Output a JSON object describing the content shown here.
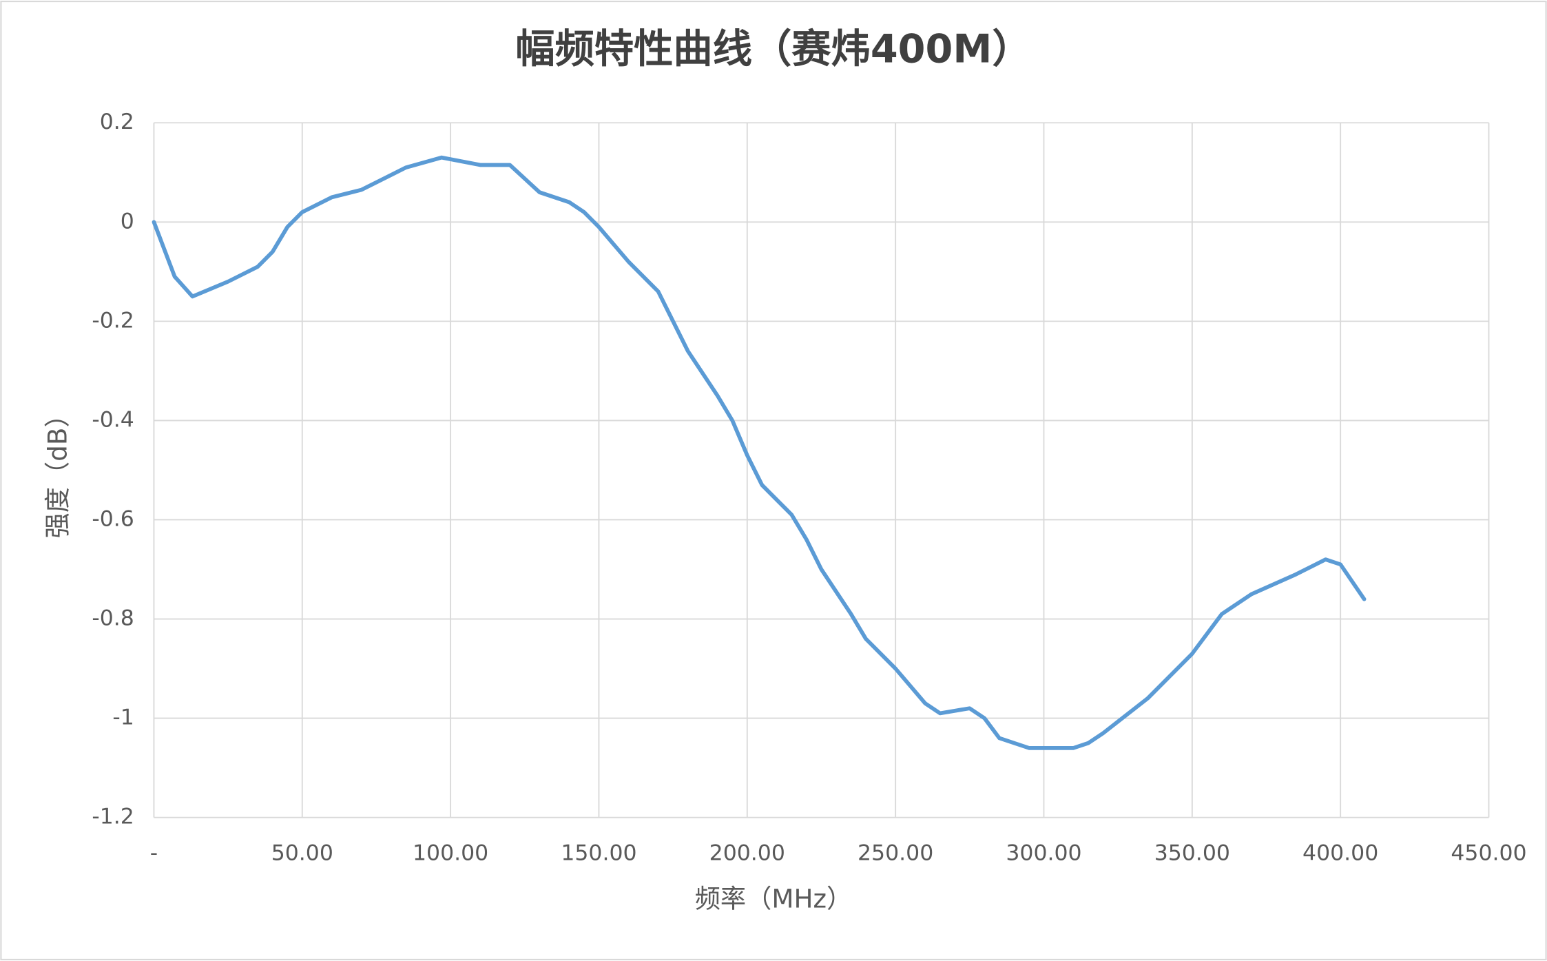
{
  "chart_data": {
    "type": "line",
    "title": "幅频特性曲线（赛炜400M）",
    "x_label": "频率（MHz）",
    "y_label": "强度（dB）",
    "x": [
      0,
      7,
      13,
      25,
      35,
      40,
      45,
      50,
      60,
      70,
      75,
      85,
      97,
      110,
      120,
      130,
      140,
      145,
      150,
      160,
      170,
      180,
      190,
      195,
      200,
      205,
      210,
      215,
      220,
      225,
      235,
      240,
      250,
      260,
      265,
      275,
      280,
      285,
      295,
      310,
      315,
      320,
      335,
      350,
      360,
      370,
      385,
      395,
      400,
      408
    ],
    "series": [
      {
        "name": "强度",
        "color": "#5b9bd5",
        "values": [
          0,
          -0.11,
          -0.15,
          -0.12,
          -0.09,
          -0.06,
          -0.01,
          0.02,
          0.05,
          0.065,
          0.08,
          0.11,
          0.13,
          0.115,
          0.115,
          0.06,
          0.04,
          0.02,
          -0.01,
          -0.08,
          -0.14,
          -0.26,
          -0.35,
          -0.4,
          -0.47,
          -0.53,
          -0.56,
          -0.59,
          -0.64,
          -0.7,
          -0.79,
          -0.84,
          -0.9,
          -0.97,
          -0.99,
          -0.98,
          -1.0,
          -1.04,
          -1.06,
          -1.06,
          -1.05,
          -1.03,
          -0.96,
          -0.87,
          -0.79,
          -0.75,
          -0.71,
          -0.68,
          -0.69,
          -0.76
        ]
      }
    ],
    "xlim": [
      0,
      450
    ],
    "xticks": [
      {
        "value": 0,
        "label": "-"
      },
      {
        "value": 50,
        "label": "50.00"
      },
      {
        "value": 100,
        "label": "100.00"
      },
      {
        "value": 150,
        "label": "150.00"
      },
      {
        "value": 200,
        "label": "200.00"
      },
      {
        "value": 250,
        "label": "250.00"
      },
      {
        "value": 300,
        "label": "300.00"
      },
      {
        "value": 350,
        "label": "350.00"
      },
      {
        "value": 400,
        "label": "400.00"
      },
      {
        "value": 450,
        "label": "450.00"
      }
    ],
    "ylim": [
      -1.2,
      0.2
    ],
    "yticks": [
      0.2,
      0,
      -0.2,
      -0.4,
      -0.6,
      -0.8,
      -1,
      -1.2
    ],
    "grid": true
  }
}
